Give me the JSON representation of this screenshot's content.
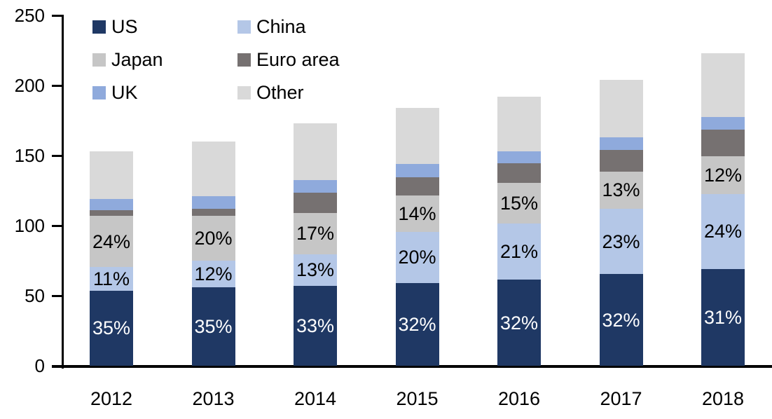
{
  "chart_data": {
    "type": "bar",
    "stacked": true,
    "title": "",
    "xlabel": "",
    "ylabel": "",
    "categories": [
      "2012",
      "2013",
      "2014",
      "2015",
      "2016",
      "2017",
      "2018"
    ],
    "series": [
      {
        "name": "US",
        "color": "#1F3864",
        "values": [
          53.6,
          56.0,
          57.1,
          58.9,
          61.4,
          65.3,
          69.1
        ],
        "labels": [
          "35%",
          "35%",
          "33%",
          "32%",
          "32%",
          "32%",
          "31%"
        ],
        "label_color": "#FFFFFF"
      },
      {
        "name": "China",
        "color": "#B4C7E7",
        "values": [
          16.8,
          19.2,
          22.5,
          36.8,
          40.3,
          46.9,
          53.5
        ],
        "labels": [
          "11%",
          "12%",
          "13%",
          "20%",
          "21%",
          "23%",
          "24%"
        ],
        "label_color": "#000000"
      },
      {
        "name": "Japan",
        "color": "#C6C6C6",
        "values": [
          36.7,
          32.0,
          29.4,
          25.8,
          28.8,
          26.5,
          26.8
        ],
        "labels": [
          "24%",
          "20%",
          "17%",
          "14%",
          "15%",
          "13%",
          "12%"
        ],
        "label_color": "#000000"
      },
      {
        "name": "Euro area",
        "color": "#767171",
        "values": [
          4.0,
          5.0,
          14.3,
          13.0,
          14.0,
          15.5,
          19.0
        ],
        "labels": [
          "",
          "",
          "",
          "",
          "",
          "",
          ""
        ],
        "label_color": "#000000"
      },
      {
        "name": "UK",
        "color": "#8FAADC",
        "values": [
          8.0,
          8.8,
          9.0,
          9.5,
          8.7,
          8.7,
          9.0
        ],
        "labels": [
          "",
          "",
          "",
          "",
          "",
          "",
          ""
        ],
        "label_color": "#000000"
      },
      {
        "name": "Other",
        "color": "#D9D9D9",
        "values": [
          33.9,
          39.0,
          40.7,
          40.0,
          38.8,
          41.1,
          45.6
        ],
        "labels": [
          "",
          "",
          "",
          "",
          "",
          "",
          ""
        ],
        "label_color": "#000000"
      }
    ],
    "totals": [
      153,
      160,
      173,
      184,
      192,
      204,
      223
    ],
    "ylim": [
      0,
      250
    ],
    "yticks": [
      0,
      50,
      100,
      150,
      200,
      250
    ],
    "grid": false,
    "legend_position": "top-left",
    "legend_columns": 2,
    "legend_order": [
      "US",
      "China",
      "Japan",
      "Euro area",
      "UK",
      "Other"
    ],
    "axis_color": "#000000",
    "background_color": "#FFFFFF"
  }
}
